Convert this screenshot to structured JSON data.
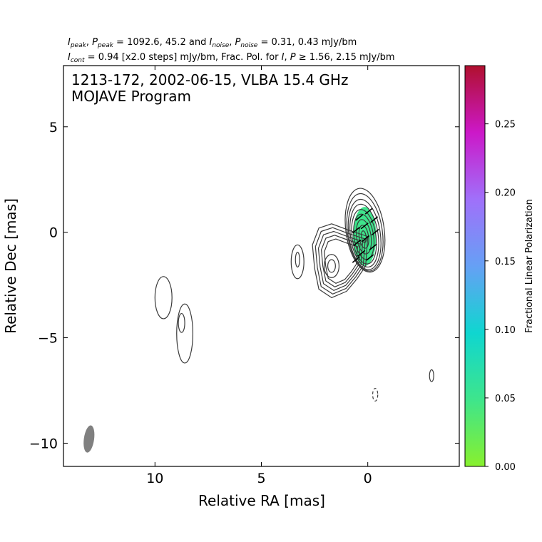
{
  "header": {
    "line1": {
      "i_sym": "I",
      "i_sub": "peak",
      "sep": ", ",
      "p_sym": "P",
      "p_sub": "peak",
      "text_a": " = 1092.6, 45.2 and ",
      "i2_sym": "I",
      "i2_sub": "noise",
      "sep2": ", ",
      "p2_sym": "P",
      "p2_sub": "noise",
      "text_b": " = 0.31, 0.43 mJy/bm"
    },
    "line2": {
      "i_sym": "I",
      "i_sub": "cont",
      "text_a": " = 0.94 [x2.0 steps] mJy/bm, Frac. Pol. for ",
      "i2_sym": "I",
      "comma": ", ",
      "p_sym": "P",
      "text_b": " ≥ 1.56, 2.15 mJy/bm"
    }
  },
  "chart_data": {
    "type": "contour",
    "title": "1213-172, 2002-06-15, VLBA 15.4 GHz",
    "subtitle": "MOJAVE Program",
    "xlabel": "Relative RA [mas]",
    "ylabel": "Relative Dec [mas]",
    "xlim": [
      14.3,
      -4.3
    ],
    "ylim": [
      -11.1,
      7.9
    ],
    "x_ticks": [
      10,
      5,
      0
    ],
    "x_tick_labels": [
      "10",
      "5",
      "0"
    ],
    "y_ticks": [
      5,
      0,
      -5,
      -10
    ],
    "y_tick_labels": [
      "5",
      "0",
      "−5",
      "−10"
    ],
    "contour_base_mJy_per_beam": 0.94,
    "contour_step_factor": 2.0,
    "core": {
      "x": 0.1,
      "y": -0.1,
      "contours": [
        {
          "dx": 0,
          "dy": 0.2,
          "rx": 0.9,
          "ry": 2.0
        },
        {
          "dx": 0.02,
          "dy": 0.1,
          "rx": 0.82,
          "ry": 1.85
        },
        {
          "dx": 0.05,
          "dy": 0.0,
          "rx": 0.74,
          "ry": 1.68
        },
        {
          "dx": 0.07,
          "dy": -0.05,
          "rx": 0.65,
          "ry": 1.5
        },
        {
          "dx": 0.09,
          "dy": -0.1,
          "rx": 0.56,
          "ry": 1.3
        },
        {
          "dx": 0.1,
          "dy": -0.1,
          "rx": 0.46,
          "ry": 1.08
        },
        {
          "dx": 0.1,
          "dy": -0.1,
          "rx": 0.34,
          "ry": 0.82
        },
        {
          "dx": 0.1,
          "dy": -0.1,
          "rx": 0.22,
          "ry": 0.55
        },
        {
          "dx": 0.1,
          "dy": -0.1,
          "rx": 0.11,
          "ry": 0.28
        }
      ]
    },
    "jet_contours": [
      {
        "dec_shift": 0.0,
        "scale": 1.0
      },
      {
        "dec_shift": 0.0,
        "scale": 0.9
      },
      {
        "dec_shift": 0.0,
        "scale": 0.8
      },
      {
        "dec_shift": 0.0,
        "scale": 0.7
      },
      {
        "dec_shift": 0.0,
        "scale": 0.6
      }
    ],
    "components": [
      {
        "x": 3.3,
        "y": -1.4,
        "rx": 0.3,
        "ry": 0.8
      },
      {
        "x": 3.3,
        "y": -1.3,
        "rx": 0.1,
        "ry": 0.35
      },
      {
        "x": 9.6,
        "y": -3.1,
        "rx": 0.4,
        "ry": 1.0
      },
      {
        "x": 8.6,
        "y": -4.8,
        "rx": 0.38,
        "ry": 1.4
      },
      {
        "x": 8.75,
        "y": -4.3,
        "rx": 0.15,
        "ry": 0.45
      },
      {
        "x": -3.0,
        "y": -6.8,
        "rx": 0.1,
        "ry": 0.28
      },
      {
        "x": -0.35,
        "y": -7.7,
        "rx": 0.12,
        "ry": 0.3,
        "dashed": true
      }
    ],
    "polarization_region": {
      "x": 0.15,
      "y": -0.2,
      "rx": 0.55,
      "ry": 1.4,
      "fractional_pol": 0.03
    },
    "evpa_ticks": [
      {
        "x": -0.05,
        "y": 1.0
      },
      {
        "x": 0.4,
        "y": 0.7
      },
      {
        "x": -0.3,
        "y": 0.6
      },
      {
        "x": 0.15,
        "y": 0.3
      },
      {
        "x": 0.55,
        "y": 0.1
      },
      {
        "x": -0.35,
        "y": 0.0
      },
      {
        "x": 0.1,
        "y": -0.3
      },
      {
        "x": 0.5,
        "y": -0.5
      },
      {
        "x": -0.25,
        "y": -0.7
      },
      {
        "x": 0.3,
        "y": -1.0
      },
      {
        "x": -0.1,
        "y": -1.2
      },
      {
        "x": 0.55,
        "y": -1.3
      }
    ],
    "beam": {
      "x": 13.1,
      "y": -9.8,
      "rx": 0.24,
      "ry": 0.65,
      "color": "#808080"
    },
    "colorbar": {
      "label": "Fractional Linear Polarization",
      "min": 0.0,
      "max": 0.2925,
      "ticks": [
        0.0,
        0.05,
        0.1,
        0.15,
        0.2,
        0.25
      ],
      "tick_labels": [
        "0.00",
        "0.05",
        "0.10",
        "0.15",
        "0.20",
        "0.25"
      ],
      "colors": [
        "#88f02e",
        "#3ee58c",
        "#0fd6d0",
        "#66a0f5",
        "#a070fa",
        "#cc18c8",
        "#b0102e"
      ]
    }
  }
}
